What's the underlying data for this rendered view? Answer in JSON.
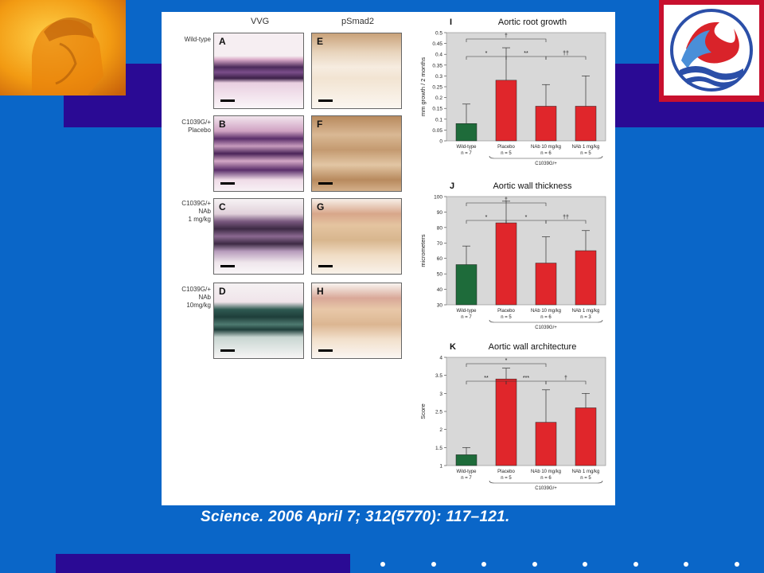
{
  "decor": {
    "accent_bg": "#0a66c8",
    "band_color": "#2a0a94",
    "logo_left": "helmet-statue-logo",
    "logo_right": "waves-flame-logo"
  },
  "figure": {
    "col_headers": [
      "VVG",
      "pSmad2"
    ],
    "row_labels": [
      "Wild-type",
      "C1039G/+\nPlacebo",
      "C1039G/+\nNAb\n1 mg/kg",
      "C1039G/+\nNAb\n10mg/kg"
    ],
    "vvg_letters": [
      "A",
      "B",
      "C",
      "D"
    ],
    "psmad_letters": [
      "E",
      "F",
      "G",
      "H"
    ]
  },
  "citation": "Science. 2006 April 7; 312(5770): 117–121.",
  "chart_data": [
    {
      "type": "bar",
      "panel": "I",
      "title": "Aortic root growth",
      "ylabel": "mm growth / 2 months",
      "xlabel": "",
      "ylim": [
        0,
        0.5
      ],
      "yticks": [
        0,
        0.05,
        0.1,
        0.15,
        0.2,
        0.25,
        0.3,
        0.35,
        0.4,
        0.45,
        0.5
      ],
      "ytick_labels": [
        "0",
        "0.05",
        "0.1",
        "0.15",
        "0.2",
        "0.25",
        "0.3",
        "0.35",
        "0.4",
        "0.45",
        "0.5"
      ],
      "categories": [
        "Wild-type\nn = 7",
        "Placebo\nn = 5",
        "NAb 10 mg/kg\nn = 6",
        "NAb 1 mg/kg\nn = 5"
      ],
      "values": [
        0.08,
        0.28,
        0.16,
        0.16
      ],
      "errors": [
        0.09,
        0.15,
        0.1,
        0.14
      ],
      "colors": [
        "#1e6b3a",
        "#e0262b",
        "#e0262b",
        "#e0262b"
      ],
      "group_label": "C1039G/+",
      "annotations": [
        "†",
        "*",
        "**",
        "††"
      ],
      "grid": false
    },
    {
      "type": "bar",
      "panel": "J",
      "title": "Aortic wall thickness",
      "ylabel": "micrometers",
      "xlabel": "",
      "ylim": [
        30,
        100
      ],
      "yticks": [
        30,
        40,
        50,
        60,
        70,
        80,
        90,
        100
      ],
      "ytick_labels": [
        "30",
        "40",
        "50",
        "60",
        "70",
        "80",
        "90",
        "100"
      ],
      "categories": [
        "Wild-type\nn = 7",
        "Placebo\nn = 5",
        "NAb 10 mg/kg\nn = 6",
        "NAb 1 mg/kg\nn = 3"
      ],
      "values": [
        56,
        83,
        57,
        65
      ],
      "errors": [
        12,
        14,
        17,
        13
      ],
      "colors": [
        "#1e6b3a",
        "#e0262b",
        "#e0262b",
        "#e0262b"
      ],
      "group_label": "C1039G/+",
      "annotations": [
        "†",
        "*",
        "*",
        "††"
      ],
      "grid": false
    },
    {
      "type": "bar",
      "panel": "K",
      "title": "Aortic wall architecture",
      "ylabel": "Score",
      "xlabel": "",
      "ylim": [
        1,
        4
      ],
      "yticks": [
        1,
        1.5,
        2,
        2.5,
        3,
        3.5,
        4
      ],
      "ytick_labels": [
        "1",
        "1.5",
        "2",
        "2.5",
        "3",
        "3.5",
        "4"
      ],
      "categories": [
        "Wild-type\nn = 7",
        "Placebo\nn = 5",
        "NAb 10 mg/kg\nn = 6",
        "NAb 1 mg/kg\nn = 5"
      ],
      "values": [
        1.3,
        3.4,
        2.2,
        2.6
      ],
      "errors": [
        0.2,
        0.3,
        0.9,
        0.4
      ],
      "colors": [
        "#1e6b3a",
        "#e0262b",
        "#e0262b",
        "#e0262b"
      ],
      "group_label": "C1039G/+",
      "annotations": [
        "*",
        "**",
        "***",
        "†"
      ],
      "grid": false
    }
  ]
}
